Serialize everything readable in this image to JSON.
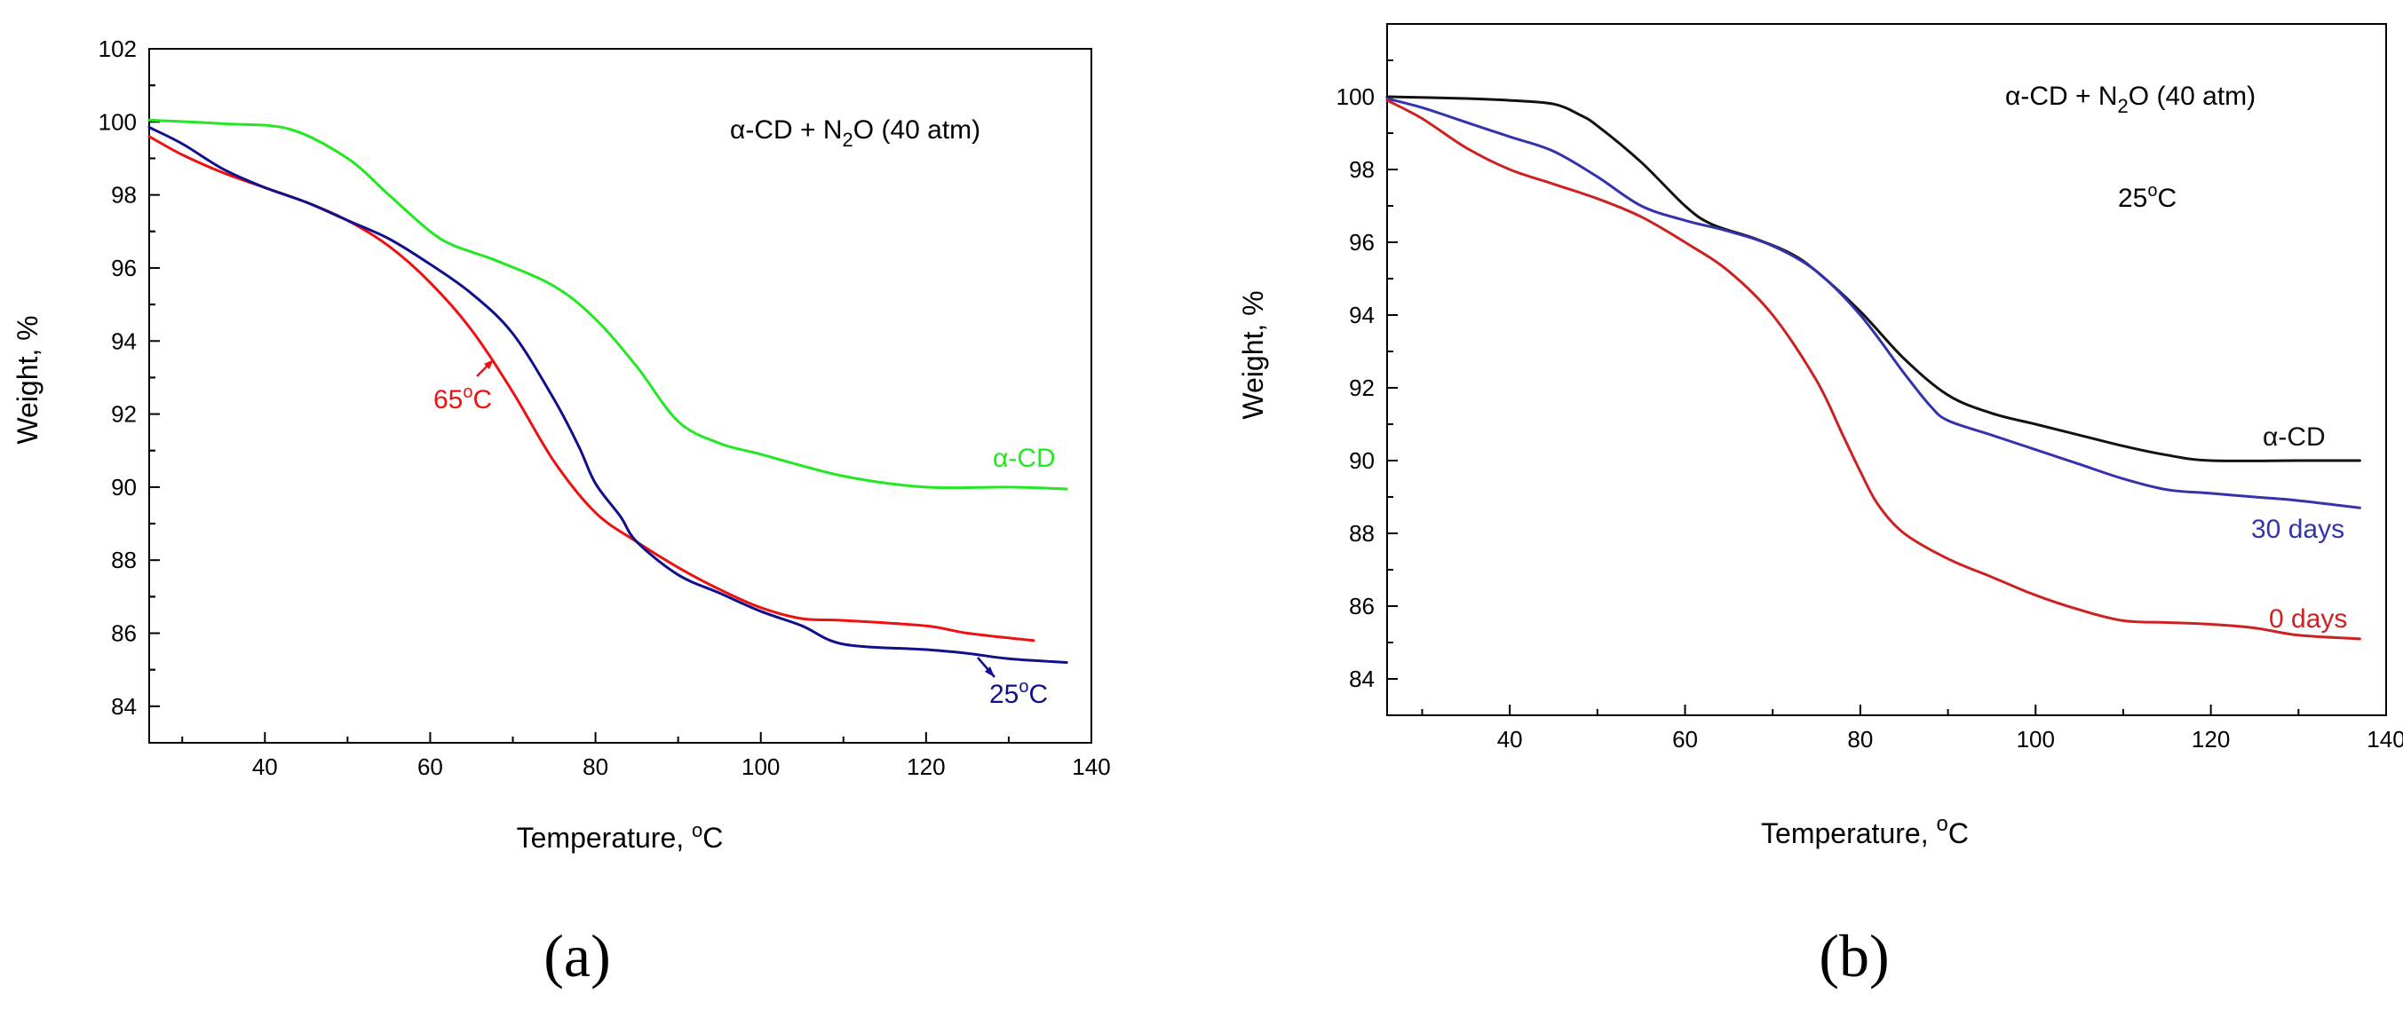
{
  "chart_data": [
    {
      "panel": "a",
      "type": "line",
      "panel_label": "(a)",
      "title": "α-CD + N2O (40 atm)",
      "title_parts": {
        "pre": "α-CD + N",
        "sub": "2",
        "post": "O (40 atm)"
      },
      "xlabel": "Temperature, °C",
      "xlabel_parts": {
        "pre": "Temperature, ",
        "sup": "o",
        "post": "C"
      },
      "ylabel": "Weight, %",
      "xlim": [
        26,
        140
      ],
      "ylim": [
        83,
        102
      ],
      "xticks": [
        40,
        60,
        80,
        100,
        120,
        140
      ],
      "yticks": [
        84,
        86,
        88,
        90,
        92,
        94,
        96,
        98,
        100,
        102
      ],
      "series": [
        {
          "name": "α-CD",
          "color": "#22e822",
          "x": [
            26,
            35,
            43,
            50,
            55,
            60,
            63,
            68,
            75,
            80,
            85,
            90,
            95,
            100,
            110,
            120,
            130,
            137
          ],
          "y": [
            100.05,
            99.95,
            99.8,
            99.0,
            98.0,
            97.0,
            96.6,
            96.2,
            95.5,
            94.6,
            93.3,
            91.8,
            91.2,
            90.9,
            90.3,
            90.0,
            90.0,
            89.95
          ]
        },
        {
          "name": "65°C",
          "color": "#ee1111",
          "x": [
            26,
            30,
            35,
            40,
            45,
            50,
            55,
            60,
            65,
            70,
            75,
            80,
            85,
            90,
            95,
            100,
            105,
            110,
            120,
            125,
            133
          ],
          "y": [
            99.6,
            99.1,
            98.6,
            98.2,
            97.8,
            97.3,
            96.6,
            95.6,
            94.3,
            92.6,
            90.7,
            89.3,
            88.5,
            87.8,
            87.2,
            86.7,
            86.4,
            86.35,
            86.2,
            86.0,
            85.8
          ]
        },
        {
          "name": "25°C",
          "color": "#10108c",
          "x": [
            26,
            30,
            35,
            40,
            45,
            50,
            55,
            60,
            65,
            70,
            75,
            78,
            80,
            83,
            85,
            90,
            95,
            100,
            105,
            110,
            120,
            125,
            130,
            137
          ],
          "y": [
            99.85,
            99.4,
            98.7,
            98.2,
            97.8,
            97.3,
            96.8,
            96.1,
            95.3,
            94.2,
            92.4,
            91.1,
            90.1,
            89.2,
            88.5,
            87.6,
            87.1,
            86.6,
            86.2,
            85.7,
            85.55,
            85.45,
            85.3,
            85.2
          ]
        }
      ],
      "annotations": [
        {
          "text": "α-CD",
          "color": "#22e822"
        },
        {
          "text": "65°C",
          "pre": "65",
          "sup": "o",
          "post": "C",
          "color": "#ee1111"
        },
        {
          "text": "25°C",
          "pre": "25",
          "sup": "o",
          "post": "C",
          "color": "#10108c"
        }
      ]
    },
    {
      "panel": "b",
      "type": "line",
      "panel_label": "(b)",
      "title": "α-CD + N2O (40 atm)",
      "title_parts": {
        "pre": "α-CD + N",
        "sub": "2",
        "post": "O (40 atm)"
      },
      "subtitle": "25°C",
      "subtitle_parts": {
        "pre": "25",
        "sup": "o",
        "post": "C"
      },
      "xlabel": "Temperature, °C",
      "xlabel_parts": {
        "pre": "Temperature, ",
        "sup": "o",
        "post": "C"
      },
      "ylabel": "Weight, %",
      "xlim": [
        26,
        140
      ],
      "ylim": [
        83,
        102
      ],
      "xticks": [
        40,
        60,
        80,
        100,
        120,
        140
      ],
      "yticks": [
        84,
        86,
        88,
        90,
        92,
        94,
        96,
        98,
        100
      ],
      "series": [
        {
          "name": "α-CD",
          "color": "#111111",
          "x": [
            26,
            35,
            40,
            45,
            48,
            50,
            55,
            60,
            63,
            68,
            72,
            75,
            80,
            85,
            90,
            95,
            100,
            105,
            110,
            115,
            120,
            130,
            137
          ],
          "y": [
            100.0,
            99.95,
            99.9,
            99.8,
            99.5,
            99.2,
            98.2,
            97.0,
            96.5,
            96.1,
            95.7,
            95.2,
            94.1,
            92.8,
            91.8,
            91.3,
            91.0,
            90.7,
            90.4,
            90.15,
            90.0,
            90.0,
            90.0
          ]
        },
        {
          "name": "30 days",
          "color": "#3333aa",
          "x": [
            26,
            30,
            35,
            40,
            45,
            50,
            55,
            60,
            65,
            70,
            75,
            80,
            85,
            88,
            90,
            95,
            100,
            105,
            110,
            115,
            120,
            125,
            130,
            137
          ],
          "y": [
            99.95,
            99.7,
            99.3,
            98.9,
            98.5,
            97.8,
            97.0,
            96.6,
            96.3,
            95.9,
            95.2,
            94.0,
            92.4,
            91.5,
            91.1,
            90.7,
            90.3,
            89.9,
            89.5,
            89.2,
            89.1,
            89.0,
            88.9,
            88.7
          ]
        },
        {
          "name": "0 days",
          "color": "#cc2222",
          "x": [
            26,
            30,
            35,
            40,
            45,
            50,
            55,
            60,
            65,
            70,
            75,
            78,
            80,
            82,
            85,
            90,
            95,
            100,
            105,
            110,
            115,
            120,
            125,
            130,
            137
          ],
          "y": [
            99.9,
            99.4,
            98.6,
            98.0,
            97.6,
            97.2,
            96.7,
            96.0,
            95.2,
            94.0,
            92.2,
            90.7,
            89.7,
            88.8,
            88.0,
            87.3,
            86.8,
            86.3,
            85.9,
            85.6,
            85.55,
            85.5,
            85.4,
            85.2,
            85.1
          ]
        }
      ],
      "annotations": [
        {
          "text": "α-CD",
          "color": "#111111"
        },
        {
          "text": "30 days",
          "color": "#3333aa"
        },
        {
          "text": "0 days",
          "color": "#cc2222"
        }
      ]
    }
  ]
}
